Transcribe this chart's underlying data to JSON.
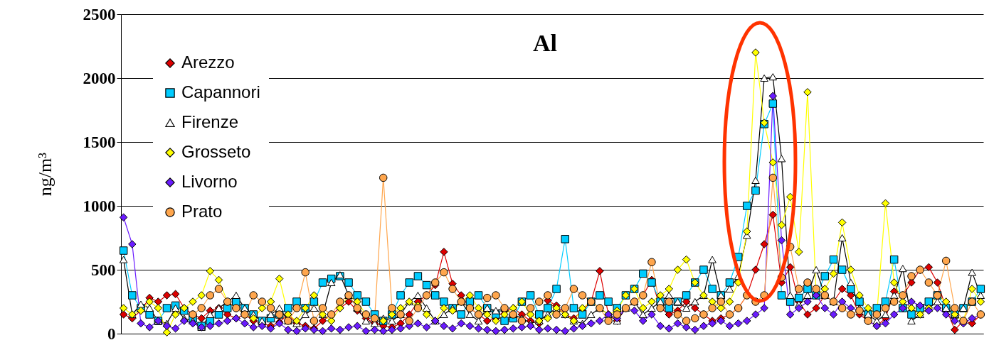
{
  "chart_data": {
    "type": "line",
    "title": "Al",
    "ylabel": "ng/m³",
    "categories": [
      null,
      null,
      null,
      null,
      null,
      null,
      null,
      null,
      null,
      null,
      null,
      null,
      null,
      null,
      null,
      null,
      null,
      null,
      null,
      null,
      null,
      null,
      null,
      null,
      null,
      null,
      null,
      null,
      null,
      null,
      null,
      null,
      null,
      null,
      null,
      null,
      null,
      null,
      null,
      null,
      null,
      null,
      null,
      null,
      null,
      null,
      null,
      null,
      null,
      null,
      null,
      null,
      null,
      null,
      null,
      null,
      null,
      null,
      null,
      null,
      null,
      null,
      null,
      null,
      null,
      null,
      null,
      null,
      null,
      null,
      null,
      null,
      null,
      null,
      null,
      null,
      null,
      null,
      null,
      null,
      null,
      null,
      null,
      null,
      null,
      null,
      null,
      null,
      null,
      null,
      null,
      null,
      null,
      null,
      null,
      null,
      null,
      null,
      null,
      null
    ],
    "ylim": [
      0,
      2500
    ],
    "yticks": [
      0,
      500,
      1000,
      1500,
      2000,
      2500
    ],
    "grid": "y",
    "legend": "top left",
    "tick_labels": "y",
    "series": [
      {
        "name": "Arezzo",
        "color": "#dd0000",
        "marker": "diamond",
        "values": [
          150,
          120,
          180,
          280,
          250,
          300,
          310,
          200,
          150,
          120,
          180,
          200,
          150,
          120,
          150,
          100,
          80,
          60,
          90,
          150,
          80,
          60,
          40,
          100,
          150,
          200,
          250,
          180,
          120,
          80,
          60,
          50,
          80,
          150,
          250,
          300,
          380,
          640,
          390,
          300,
          200,
          150,
          100,
          120,
          180,
          200,
          150,
          100,
          80,
          260,
          220,
          150,
          120,
          180,
          250,
          490,
          150,
          100,
          200,
          250,
          300,
          420,
          200,
          150,
          180,
          250,
          200,
          150,
          100,
          120,
          150,
          200,
          300,
          500,
          700,
          930,
          400,
          520,
          250,
          150,
          200,
          300,
          250,
          350,
          300,
          150,
          100,
          60,
          120,
          330,
          300,
          400,
          500,
          520,
          400,
          200,
          30,
          100,
          80,
          150
        ]
      },
      {
        "name": "Capannori",
        "color": "#00ccff",
        "marker": "square",
        "values": [
          650,
          300,
          200,
          150,
          100,
          200,
          220,
          180,
          120,
          60,
          100,
          150,
          200,
          250,
          200,
          150,
          100,
          120,
          150,
          200,
          250,
          200,
          250,
          400,
          430,
          450,
          400,
          300,
          250,
          150,
          100,
          150,
          300,
          400,
          450,
          380,
          300,
          250,
          200,
          150,
          250,
          300,
          200,
          150,
          100,
          120,
          250,
          300,
          150,
          200,
          350,
          740,
          200,
          150,
          250,
          300,
          250,
          200,
          300,
          350,
          470,
          400,
          250,
          200,
          250,
          300,
          400,
          500,
          350,
          300,
          400,
          600,
          1000,
          1120,
          1640,
          1800,
          300,
          250,
          280,
          350,
          300,
          450,
          580,
          500,
          350,
          250,
          150,
          200,
          250,
          580,
          200,
          150,
          200,
          250,
          300,
          200,
          150,
          200,
          250,
          350
        ]
      },
      {
        "name": "Firenze",
        "color": "#ffffff",
        "marker": "triangle",
        "values": [
          580,
          150,
          230,
          200,
          100,
          80,
          200,
          120,
          100,
          50,
          150,
          200,
          250,
          300,
          200,
          150,
          100,
          150,
          200,
          100,
          80,
          150,
          200,
          150,
          400,
          460,
          300,
          200,
          100,
          80,
          120,
          100,
          150,
          250,
          300,
          200,
          100,
          150,
          200,
          250,
          150,
          100,
          200,
          180,
          200,
          150,
          120,
          80,
          100,
          150,
          200,
          150,
          100,
          80,
          150,
          200,
          150,
          100,
          200,
          250,
          150,
          200,
          250,
          300,
          250,
          200,
          250,
          300,
          580,
          300,
          350,
          450,
          770,
          1200,
          2000,
          2010,
          1370,
          300,
          230,
          300,
          500,
          300,
          250,
          750,
          400,
          200,
          150,
          100,
          150,
          300,
          510,
          100,
          150,
          200,
          250,
          200,
          150,
          200,
          480,
          300
        ]
      },
      {
        "name": "Grosseto",
        "color": "#ffff00",
        "marker": "diamond",
        "values": [
          200,
          150,
          180,
          250,
          200,
          10,
          150,
          200,
          250,
          300,
          490,
          420,
          250,
          200,
          150,
          120,
          200,
          250,
          430,
          150,
          100,
          200,
          300,
          150,
          100,
          200,
          300,
          250,
          150,
          120,
          100,
          150,
          200,
          250,
          220,
          150,
          100,
          200,
          180,
          250,
          300,
          200,
          150,
          100,
          150,
          200,
          250,
          150,
          100,
          120,
          200,
          150,
          100,
          200,
          250,
          200,
          150,
          180,
          300,
          350,
          200,
          250,
          300,
          350,
          500,
          580,
          400,
          300,
          250,
          200,
          250,
          400,
          800,
          2200,
          1650,
          1340,
          850,
          1070,
          640,
          1890,
          300,
          350,
          470,
          870,
          500,
          300,
          200,
          150,
          1020,
          400,
          250,
          200,
          150,
          200,
          300,
          250,
          150,
          100,
          350,
          250
        ]
      },
      {
        "name": "Livorno",
        "color": "#6a1bff",
        "marker": "diamond",
        "values": [
          910,
          700,
          80,
          50,
          100,
          60,
          40,
          100,
          80,
          50,
          60,
          80,
          100,
          120,
          80,
          50,
          60,
          40,
          80,
          30,
          20,
          40,
          30,
          20,
          40,
          30,
          50,
          60,
          20,
          30,
          20,
          30,
          40,
          60,
          80,
          50,
          100,
          60,
          40,
          80,
          60,
          40,
          30,
          20,
          30,
          40,
          50,
          60,
          30,
          40,
          30,
          20,
          40,
          60,
          80,
          100,
          150,
          120,
          200,
          180,
          100,
          150,
          60,
          40,
          80,
          50,
          30,
          60,
          80,
          100,
          60,
          80,
          100,
          150,
          200,
          1860,
          730,
          150,
          200,
          250,
          300,
          200,
          150,
          250,
          200,
          180,
          100,
          60,
          80,
          150,
          200,
          250,
          220,
          180,
          200,
          150,
          100,
          80,
          120,
          150
        ]
      },
      {
        "name": "Prato",
        "color": "#ffa64d",
        "marker": "circle",
        "values": [
          null,
          null,
          null,
          null,
          null,
          null,
          null,
          null,
          150,
          200,
          300,
          350,
          250,
          200,
          150,
          300,
          250,
          200,
          150,
          100,
          200,
          480,
          100,
          200,
          150,
          250,
          300,
          200,
          150,
          120,
          1220,
          200,
          150,
          100,
          200,
          300,
          400,
          480,
          350,
          250,
          200,
          150,
          280,
          300,
          200,
          150,
          100,
          200,
          250,
          300,
          150,
          200,
          350,
          300,
          250,
          200,
          100,
          150,
          200,
          250,
          300,
          560,
          200,
          250,
          150,
          100,
          120,
          150,
          200,
          250,
          150,
          200,
          300,
          250,
          300,
          1220,
          440,
          680,
          350,
          400,
          350,
          300,
          250,
          200,
          150,
          180,
          100,
          150,
          200,
          250,
          300,
          450,
          500,
          400,
          300,
          570,
          200,
          100,
          250,
          150
        ]
      }
    ]
  }
}
